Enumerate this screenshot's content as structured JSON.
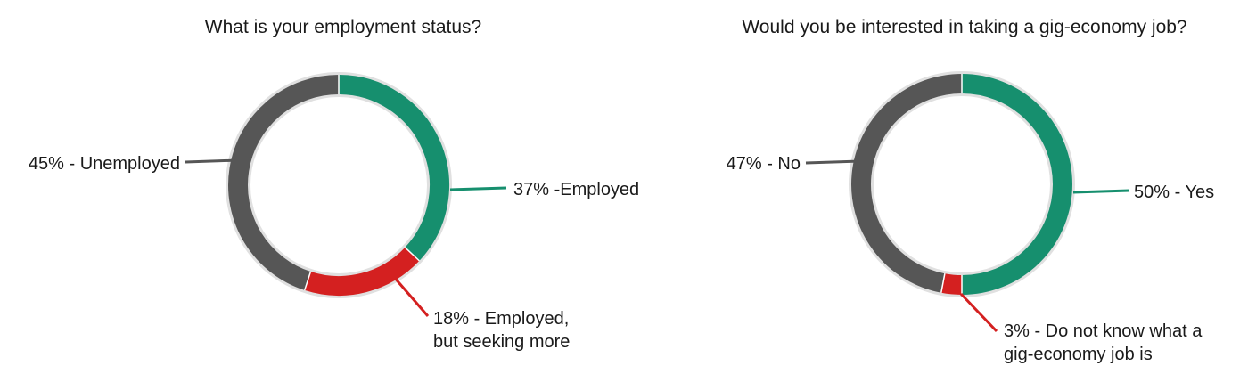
{
  "colors": {
    "track": "#e0e0e0",
    "employed": "#168f6e",
    "seeking": "#d42020",
    "unemployed": "#565656"
  },
  "chart_data": [
    {
      "type": "pie",
      "title": "What is your employment status?",
      "slices": [
        {
          "label_lines": [
            "37% -Employed"
          ],
          "value": 37,
          "color": "#168f6e"
        },
        {
          "label_lines": [
            "18% - Employed,",
            "but seeking more"
          ],
          "value": 18,
          "color": "#d42020"
        },
        {
          "label_lines": [
            "45% - Unemployed"
          ],
          "value": 45,
          "color": "#565656"
        }
      ]
    },
    {
      "type": "pie",
      "title": "Would you be interested in taking a gig-economy job?",
      "slices": [
        {
          "label_lines": [
            "50% - Yes"
          ],
          "value": 50,
          "color": "#168f6e"
        },
        {
          "label_lines": [
            "3% - Do not know what a",
            "gig-economy job is"
          ],
          "value": 3,
          "color": "#d42020"
        },
        {
          "label_lines": [
            "47% - No"
          ],
          "value": 47,
          "color": "#565656"
        }
      ]
    }
  ]
}
